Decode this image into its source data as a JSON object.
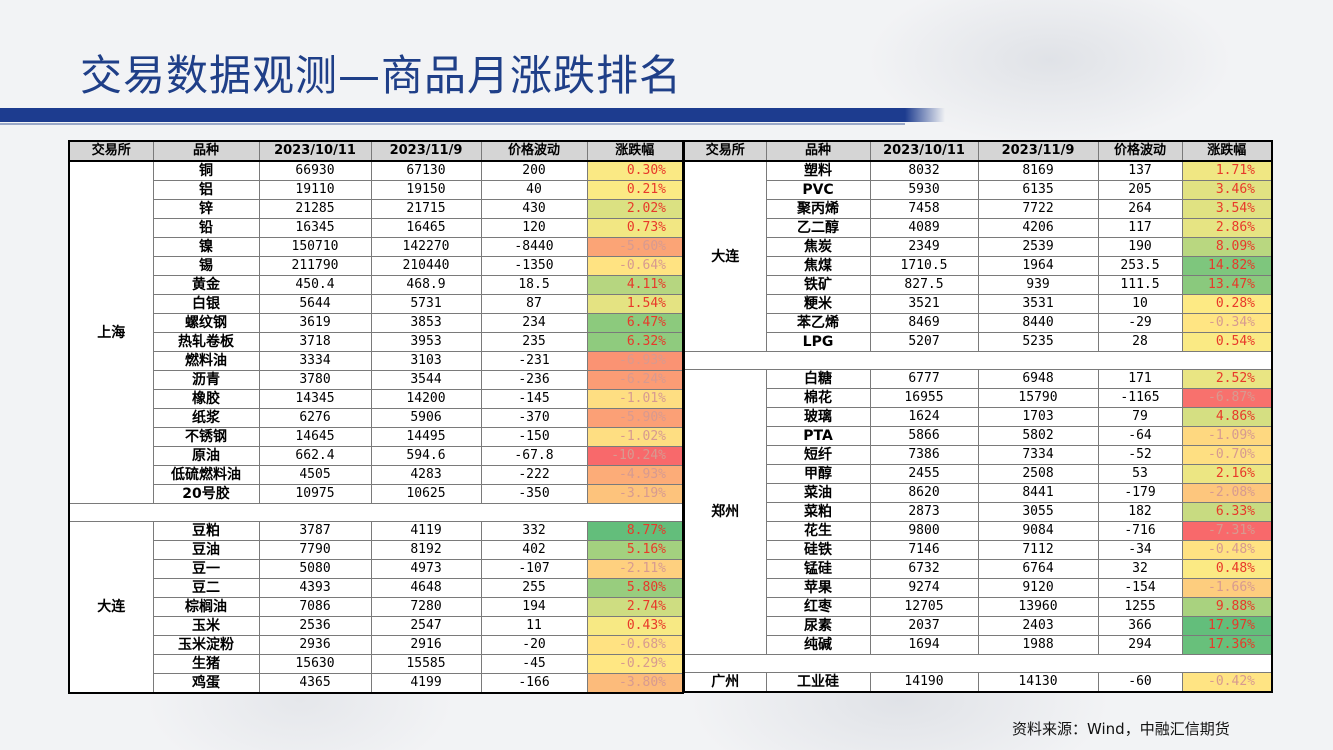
{
  "title": "交易数据观测—商品月涨跌排名",
  "source": "资料来源：Wind，中融汇信期货",
  "headers": [
    "交易所",
    "品种",
    "2023/10/11",
    "2023/11/9",
    "价格波动",
    "涨跌幅"
  ],
  "left_table": {
    "groups": [
      {
        "exchange": "上海",
        "rows": [
          {
            "name": "铜",
            "d1": "66930",
            "d2": "67130",
            "chg": "200",
            "pct": "0.30%",
            "v": 0.3
          },
          {
            "name": "铝",
            "d1": "19110",
            "d2": "19150",
            "chg": "40",
            "pct": "0.21%",
            "v": 0.21
          },
          {
            "name": "锌",
            "d1": "21285",
            "d2": "21715",
            "chg": "430",
            "pct": "2.02%",
            "v": 2.02
          },
          {
            "name": "铅",
            "d1": "16345",
            "d2": "16465",
            "chg": "120",
            "pct": "0.73%",
            "v": 0.73
          },
          {
            "name": "镍",
            "d1": "150710",
            "d2": "142270",
            "chg": "-8440",
            "pct": "-5.60%",
            "v": -5.6
          },
          {
            "name": "锡",
            "d1": "211790",
            "d2": "210440",
            "chg": "-1350",
            "pct": "-0.64%",
            "v": -0.64
          },
          {
            "name": "黄金",
            "d1": "450.4",
            "d2": "468.9",
            "chg": "18.5",
            "pct": "4.11%",
            "v": 4.11
          },
          {
            "name": "白银",
            "d1": "5644",
            "d2": "5731",
            "chg": "87",
            "pct": "1.54%",
            "v": 1.54
          },
          {
            "name": "螺纹钢",
            "d1": "3619",
            "d2": "3853",
            "chg": "234",
            "pct": "6.47%",
            "v": 6.47
          },
          {
            "name": "热轧卷板",
            "d1": "3718",
            "d2": "3953",
            "chg": "235",
            "pct": "6.32%",
            "v": 6.32
          },
          {
            "name": "燃料油",
            "d1": "3334",
            "d2": "3103",
            "chg": "-231",
            "pct": "-6.93%",
            "v": -6.93
          },
          {
            "name": "沥青",
            "d1": "3780",
            "d2": "3544",
            "chg": "-236",
            "pct": "-6.24%",
            "v": -6.24
          },
          {
            "name": "橡胶",
            "d1": "14345",
            "d2": "14200",
            "chg": "-145",
            "pct": "-1.01%",
            "v": -1.01
          },
          {
            "name": "纸浆",
            "d1": "6276",
            "d2": "5906",
            "chg": "-370",
            "pct": "-5.90%",
            "v": -5.9
          },
          {
            "name": "不锈钢",
            "d1": "14645",
            "d2": "14495",
            "chg": "-150",
            "pct": "-1.02%",
            "v": -1.02
          },
          {
            "name": "原油",
            "d1": "662.4",
            "d2": "594.6",
            "chg": "-67.8",
            "pct": "-10.24%",
            "v": -10.24
          },
          {
            "name": "低硫燃料油",
            "d1": "4505",
            "d2": "4283",
            "chg": "-222",
            "pct": "-4.93%",
            "v": -4.93
          },
          {
            "name": "20号胶",
            "d1": "10975",
            "d2": "10625",
            "chg": "-350",
            "pct": "-3.19%",
            "v": -3.19
          }
        ]
      },
      {
        "exchange": "大连",
        "rows": [
          {
            "name": "豆粕",
            "d1": "3787",
            "d2": "4119",
            "chg": "332",
            "pct": "8.77%",
            "v": 8.77
          },
          {
            "name": "豆油",
            "d1": "7790",
            "d2": "8192",
            "chg": "402",
            "pct": "5.16%",
            "v": 5.16
          },
          {
            "name": "豆一",
            "d1": "5080",
            "d2": "4973",
            "chg": "-107",
            "pct": "-2.11%",
            "v": -2.11
          },
          {
            "name": "豆二",
            "d1": "4393",
            "d2": "4648",
            "chg": "255",
            "pct": "5.80%",
            "v": 5.8
          },
          {
            "name": "棕榈油",
            "d1": "7086",
            "d2": "7280",
            "chg": "194",
            "pct": "2.74%",
            "v": 2.74
          },
          {
            "name": "玉米",
            "d1": "2536",
            "d2": "2547",
            "chg": "11",
            "pct": "0.43%",
            "v": 0.43
          },
          {
            "name": "玉米淀粉",
            "d1": "2936",
            "d2": "2916",
            "chg": "-20",
            "pct": "-0.68%",
            "v": -0.68
          },
          {
            "name": "生猪",
            "d1": "15630",
            "d2": "15585",
            "chg": "-45",
            "pct": "-0.29%",
            "v": -0.29
          },
          {
            "name": "鸡蛋",
            "d1": "4365",
            "d2": "4199",
            "chg": "-166",
            "pct": "-3.80%",
            "v": -3.8
          }
        ]
      }
    ]
  },
  "right_table": {
    "groups": [
      {
        "exchange": "大连",
        "rows": [
          {
            "name": "塑料",
            "d1": "8032",
            "d2": "8169",
            "chg": "137",
            "pct": "1.71%",
            "v": 1.71
          },
          {
            "name": "PVC",
            "d1": "5930",
            "d2": "6135",
            "chg": "205",
            "pct": "3.46%",
            "v": 3.46
          },
          {
            "name": "聚丙烯",
            "d1": "7458",
            "d2": "7722",
            "chg": "264",
            "pct": "3.54%",
            "v": 3.54
          },
          {
            "name": "乙二醇",
            "d1": "4089",
            "d2": "4206",
            "chg": "117",
            "pct": "2.86%",
            "v": 2.86
          },
          {
            "name": "焦炭",
            "d1": "2349",
            "d2": "2539",
            "chg": "190",
            "pct": "8.09%",
            "v": 8.09
          },
          {
            "name": "焦煤",
            "d1": "1710.5",
            "d2": "1964",
            "chg": "253.5",
            "pct": "14.82%",
            "v": 14.82
          },
          {
            "name": "铁矿",
            "d1": "827.5",
            "d2": "939",
            "chg": "111.5",
            "pct": "13.47%",
            "v": 13.47
          },
          {
            "name": "粳米",
            "d1": "3521",
            "d2": "3531",
            "chg": "10",
            "pct": "0.28%",
            "v": 0.28
          },
          {
            "name": "苯乙烯",
            "d1": "8469",
            "d2": "8440",
            "chg": "-29",
            "pct": "-0.34%",
            "v": -0.34
          },
          {
            "name": "LPG",
            "d1": "5207",
            "d2": "5235",
            "chg": "28",
            "pct": "0.54%",
            "v": 0.54
          }
        ]
      },
      {
        "exchange": "郑州",
        "rows": [
          {
            "name": "白糖",
            "d1": "6777",
            "d2": "6948",
            "chg": "171",
            "pct": "2.52%",
            "v": 2.52
          },
          {
            "name": "棉花",
            "d1": "16955",
            "d2": "15790",
            "chg": "-1165",
            "pct": "-6.87%",
            "v": -6.87
          },
          {
            "name": "玻璃",
            "d1": "1624",
            "d2": "1703",
            "chg": "79",
            "pct": "4.86%",
            "v": 4.86
          },
          {
            "name": "PTA",
            "d1": "5866",
            "d2": "5802",
            "chg": "-64",
            "pct": "-1.09%",
            "v": -1.09
          },
          {
            "name": "短纤",
            "d1": "7386",
            "d2": "7334",
            "chg": "-52",
            "pct": "-0.70%",
            "v": -0.7
          },
          {
            "name": "甲醇",
            "d1": "2455",
            "d2": "2508",
            "chg": "53",
            "pct": "2.16%",
            "v": 2.16
          },
          {
            "name": "菜油",
            "d1": "8620",
            "d2": "8441",
            "chg": "-179",
            "pct": "-2.08%",
            "v": -2.08
          },
          {
            "name": "菜粕",
            "d1": "2873",
            "d2": "3055",
            "chg": "182",
            "pct": "6.33%",
            "v": 6.33
          },
          {
            "name": "花生",
            "d1": "9800",
            "d2": "9084",
            "chg": "-716",
            "pct": "-7.31%",
            "v": -7.31
          },
          {
            "name": "硅铁",
            "d1": "7146",
            "d2": "7112",
            "chg": "-34",
            "pct": "-0.48%",
            "v": -0.48
          },
          {
            "name": "锰硅",
            "d1": "6732",
            "d2": "6764",
            "chg": "32",
            "pct": "0.48%",
            "v": 0.48
          },
          {
            "name": "苹果",
            "d1": "9274",
            "d2": "9120",
            "chg": "-154",
            "pct": "-1.66%",
            "v": -1.66
          },
          {
            "name": "红枣",
            "d1": "12705",
            "d2": "13960",
            "chg": "1255",
            "pct": "9.88%",
            "v": 9.88
          },
          {
            "name": "尿素",
            "d1": "2037",
            "d2": "2403",
            "chg": "366",
            "pct": "17.97%",
            "v": 17.97
          },
          {
            "name": "纯碱",
            "d1": "1694",
            "d2": "1988",
            "chg": "294",
            "pct": "17.36%",
            "v": 17.36
          }
        ]
      },
      {
        "exchange": "广州",
        "rows": [
          {
            "name": "工业硅",
            "d1": "14190",
            "d2": "14130",
            "chg": "-60",
            "pct": "-0.42%",
            "v": -0.42
          }
        ]
      }
    ]
  },
  "colors": {
    "title": "#1f3f88",
    "band": "#1d3c8f",
    "header_bg": "#d5d5d5",
    "scale_red": "#f8696b",
    "scale_yellow": "#ffeb84",
    "scale_green": "#63be7b",
    "pct_text": "#e8392a"
  }
}
